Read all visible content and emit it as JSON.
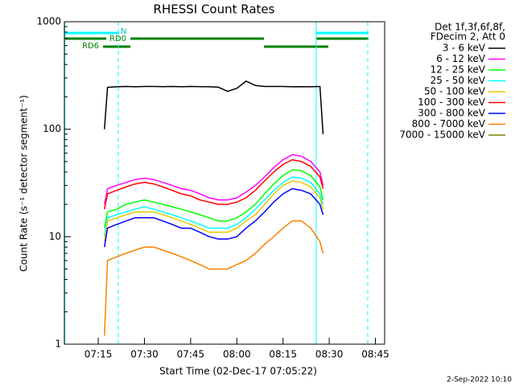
{
  "chart_data": {
    "type": "line",
    "title": "RHESSI Count Rates",
    "x_label": "Start Time (02-Dec-17 07:05:22)",
    "y_label": "Count Rate (s⁻¹ detector segment⁻¹)",
    "legend_header": [
      "Det 1f,3f,6f,8f,",
      "FDecim 2, Att 0"
    ],
    "flags": [
      "N",
      "RD0",
      "RD6"
    ],
    "timestamp": "2-Sep-2022 10:10",
    "log_y": true,
    "xlim": [
      "07:04",
      "08:48"
    ],
    "xticks": [
      "07:15",
      "07:30",
      "07:45",
      "08:00",
      "08:15",
      "08:30",
      "08:45"
    ],
    "ylim": [
      1,
      1000
    ],
    "yticks": [
      1,
      10,
      100,
      1000
    ],
    "x": [
      "07:17",
      "07:18",
      "07:21",
      "07:24",
      "07:27",
      "07:30",
      "07:33",
      "07:36",
      "07:39",
      "07:42",
      "07:45",
      "07:48",
      "07:51",
      "07:54",
      "07:57",
      "08:00",
      "08:03",
      "08:06",
      "08:09",
      "08:12",
      "08:15",
      "08:18",
      "08:21",
      "08:24",
      "08:27",
      "08:28"
    ],
    "series": [
      {
        "name": "3 - 6 keV",
        "color": "#000000",
        "values": [
          100,
          245,
          248,
          250,
          248,
          250,
          250,
          249,
          250,
          248,
          250,
          249,
          248,
          246,
          225,
          240,
          280,
          255,
          250,
          250,
          250,
          248,
          249,
          248,
          250,
          90
        ]
      },
      {
        "name": "6 - 12 keV",
        "color": "#ff00ff",
        "values": [
          20,
          28,
          30,
          32,
          34,
          35,
          34,
          32,
          30,
          28,
          27,
          25,
          23,
          22,
          22,
          23,
          26,
          30,
          36,
          44,
          52,
          58,
          56,
          50,
          40,
          30
        ]
      },
      {
        "name": "12 - 25 keV",
        "color": "#00ff00",
        "values": [
          12,
          17,
          18,
          20,
          21,
          22,
          21,
          20,
          19,
          18,
          17,
          16,
          15,
          14,
          14,
          15,
          17,
          20,
          25,
          31,
          37,
          42,
          41,
          37,
          29,
          22
        ]
      },
      {
        "name": "25 - 50 keV",
        "color": "#00ffff",
        "values": [
          10,
          15,
          16,
          17,
          18,
          19,
          18,
          17,
          16,
          15,
          14,
          13,
          12,
          12,
          12,
          13,
          15,
          18,
          22,
          27,
          32,
          36,
          35,
          32,
          25,
          20
        ]
      },
      {
        "name": "50 - 100 keV",
        "color": "#e8c800",
        "values": [
          9,
          14,
          15,
          16,
          17,
          17,
          17,
          16,
          15,
          14,
          13,
          12,
          11,
          11,
          11,
          12,
          14,
          16,
          20,
          25,
          30,
          33,
          32,
          29,
          23,
          18
        ]
      },
      {
        "name": "100 - 300 keV",
        "color": "#ff0000",
        "values": [
          18,
          25,
          27,
          29,
          31,
          32,
          31,
          29,
          27,
          25,
          24,
          22,
          21,
          20,
          20,
          21,
          23,
          27,
          33,
          40,
          47,
          52,
          50,
          45,
          36,
          28
        ]
      },
      {
        "name": "300 - 800 keV",
        "color": "#0000ff",
        "values": [
          8,
          12,
          13,
          14,
          15,
          15,
          15,
          14,
          13,
          12,
          12,
          11,
          10,
          9.5,
          9.5,
          10,
          12,
          14,
          17,
          21,
          25,
          28,
          27,
          25,
          20,
          16
        ]
      },
      {
        "name": "800 - 7000 keV",
        "color": "#ff8000",
        "values": [
          1.2,
          6,
          6.5,
          7,
          7.5,
          8,
          8,
          7.5,
          7,
          6.5,
          6,
          5.5,
          5,
          5,
          5,
          5.5,
          6,
          7,
          8.5,
          10,
          12,
          14,
          14,
          12,
          9,
          7
        ]
      },
      {
        "name": "7000 - 15000 keV",
        "color": "#808000",
        "values": [
          null,
          null,
          null,
          null,
          null,
          null,
          null,
          null,
          null,
          null,
          null,
          null,
          null,
          null,
          null,
          null,
          null,
          null,
          null,
          null,
          null,
          null,
          null,
          null,
          null,
          null
        ]
      }
    ]
  }
}
